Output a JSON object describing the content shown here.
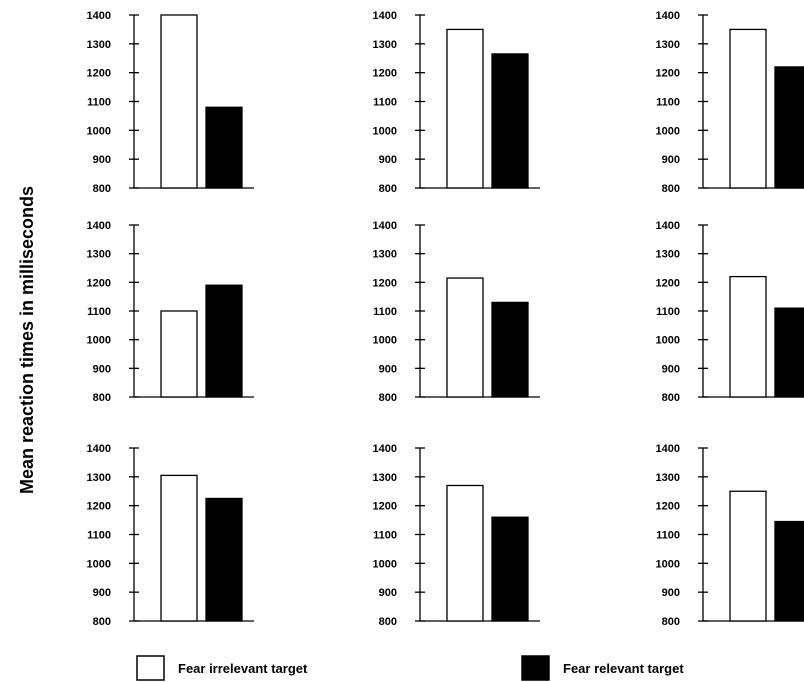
{
  "chart_data": {
    "type": "bar",
    "ylabel": "Mean reaction times in milliseconds",
    "ylim": [
      800,
      1400
    ],
    "yticks": [
      800,
      900,
      1000,
      1100,
      1200,
      1300,
      1400
    ],
    "grid": false,
    "legend": {
      "placement": "bottom",
      "items": [
        {
          "label": "Fear irrelevant target",
          "fill": "#ffffff"
        },
        {
          "label": "Fear relevant target",
          "fill": "#000000"
        }
      ]
    },
    "series_order": [
      "Fear irrelevant target",
      "Fear relevant target"
    ],
    "panels": [
      {
        "row": 0,
        "col": 0,
        "values": [
          1400,
          1080
        ]
      },
      {
        "row": 0,
        "col": 1,
        "values": [
          1350,
          1265
        ]
      },
      {
        "row": 0,
        "col": 2,
        "values": [
          1350,
          1220
        ]
      },
      {
        "row": 1,
        "col": 0,
        "values": [
          1100,
          1190
        ]
      },
      {
        "row": 1,
        "col": 1,
        "values": [
          1215,
          1130
        ]
      },
      {
        "row": 1,
        "col": 2,
        "values": [
          1220,
          1110
        ]
      },
      {
        "row": 2,
        "col": 0,
        "values": [
          1305,
          1225
        ]
      },
      {
        "row": 2,
        "col": 1,
        "values": [
          1270,
          1160
        ]
      },
      {
        "row": 2,
        "col": 2,
        "values": [
          1250,
          1145
        ]
      }
    ]
  }
}
